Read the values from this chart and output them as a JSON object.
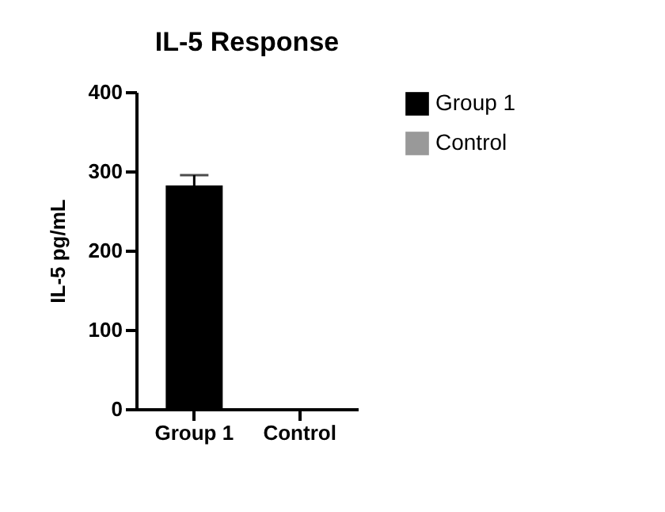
{
  "chart_data": {
    "type": "bar",
    "title": "IL-5 Response",
    "ylabel": "IL-5 pg/mL",
    "categories": [
      "Group 1",
      "Control"
    ],
    "series": [
      {
        "name": "Group 1",
        "color": "#000000",
        "values": [
          282,
          null
        ],
        "errors": [
          13,
          null
        ]
      },
      {
        "name": "Control",
        "color": "#999999",
        "values": [
          null,
          0
        ]
      }
    ],
    "ylim": [
      0,
      400
    ],
    "yticks": [
      0,
      100,
      200,
      300,
      400
    ],
    "legend": "right"
  }
}
